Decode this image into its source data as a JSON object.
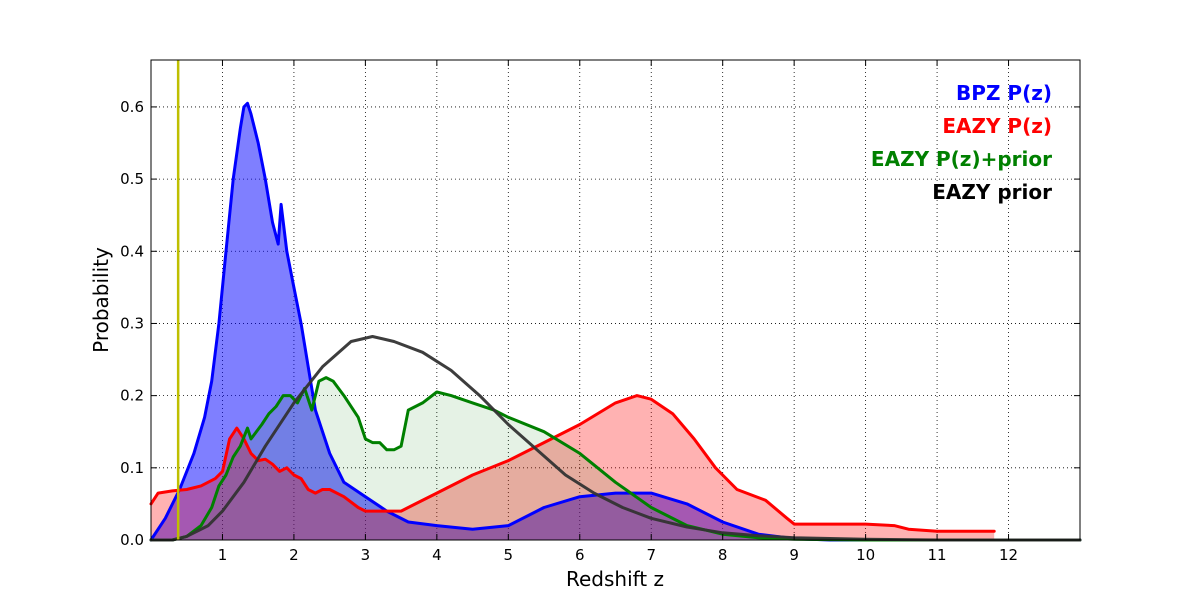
{
  "chart_data": {
    "type": "area",
    "xlabel": "Redshift z",
    "ylabel": "Probability",
    "xlim": [
      0,
      13
    ],
    "ylim": [
      0,
      0.665
    ],
    "xticks": [
      1,
      2,
      3,
      4,
      5,
      6,
      7,
      8,
      9,
      10,
      11,
      12
    ],
    "xtick_labels": [
      "1",
      "2",
      "3",
      "4",
      "5",
      "6",
      "7",
      "8",
      "9",
      "10",
      "11",
      "12"
    ],
    "yticks": [
      0.0,
      0.1,
      0.2,
      0.3,
      0.4,
      0.5,
      0.6
    ],
    "ytick_labels": [
      "0.0",
      "0.1",
      "0.2",
      "0.3",
      "0.4",
      "0.5",
      "0.6"
    ],
    "grid": true,
    "legend_position": "top-right",
    "vertical_line": {
      "x": 0.38,
      "color": "#bfbf00"
    },
    "series": [
      {
        "name": "BPZ P(z)",
        "color": "#0000ff",
        "fill": "#0000ff",
        "fill_opacity": 0.5,
        "x": [
          0.0,
          0.2,
          0.4,
          0.6,
          0.75,
          0.85,
          0.95,
          1.05,
          1.15,
          1.25,
          1.3,
          1.35,
          1.4,
          1.5,
          1.6,
          1.7,
          1.78,
          1.82,
          1.9,
          2.0,
          2.1,
          2.2,
          2.3,
          2.5,
          2.7,
          3.0,
          3.3,
          3.6,
          4.0,
          4.5,
          5.0,
          5.5,
          6.0,
          6.5,
          7.0,
          7.5,
          8.0,
          8.5,
          9.0,
          9.5,
          10.0,
          11.0,
          12.0,
          13.0
        ],
        "y": [
          0.0,
          0.03,
          0.07,
          0.12,
          0.17,
          0.22,
          0.3,
          0.4,
          0.5,
          0.57,
          0.6,
          0.605,
          0.59,
          0.55,
          0.5,
          0.44,
          0.41,
          0.465,
          0.4,
          0.35,
          0.3,
          0.24,
          0.18,
          0.12,
          0.08,
          0.06,
          0.04,
          0.025,
          0.02,
          0.015,
          0.02,
          0.045,
          0.06,
          0.065,
          0.065,
          0.05,
          0.025,
          0.008,
          0.002,
          0.0,
          0.0,
          0.0,
          0.0,
          0.0
        ]
      },
      {
        "name": "EAZY P(z)",
        "color": "#ff0000",
        "fill": "#ff0000",
        "fill_opacity": 0.3,
        "x": [
          0.0,
          0.1,
          0.3,
          0.5,
          0.7,
          0.9,
          1.0,
          1.1,
          1.2,
          1.3,
          1.4,
          1.5,
          1.6,
          1.7,
          1.8,
          1.9,
          2.0,
          2.1,
          2.2,
          2.3,
          2.4,
          2.5,
          2.7,
          2.9,
          3.0,
          3.2,
          3.5,
          3.7,
          4.0,
          4.5,
          5.0,
          5.5,
          6.0,
          6.5,
          6.8,
          7.0,
          7.3,
          7.6,
          7.9,
          8.2,
          8.6,
          8.9,
          9.0,
          9.5,
          10.0,
          10.4,
          10.6,
          11.0,
          11.5,
          11.8
        ],
        "y": [
          0.05,
          0.065,
          0.068,
          0.07,
          0.075,
          0.085,
          0.095,
          0.14,
          0.155,
          0.14,
          0.12,
          0.11,
          0.112,
          0.105,
          0.095,
          0.1,
          0.09,
          0.085,
          0.07,
          0.065,
          0.07,
          0.07,
          0.06,
          0.045,
          0.04,
          0.04,
          0.04,
          0.05,
          0.065,
          0.09,
          0.11,
          0.135,
          0.16,
          0.19,
          0.2,
          0.195,
          0.175,
          0.14,
          0.1,
          0.07,
          0.055,
          0.03,
          0.022,
          0.022,
          0.022,
          0.02,
          0.015,
          0.012,
          0.012,
          0.012
        ]
      },
      {
        "name": "EAZY P(z)+prior",
        "color": "#008000",
        "fill": "#008000",
        "fill_opacity": 0.1,
        "x": [
          0.0,
          0.3,
          0.5,
          0.7,
          0.85,
          0.95,
          1.05,
          1.15,
          1.25,
          1.35,
          1.4,
          1.55,
          1.65,
          1.75,
          1.85,
          1.95,
          2.05,
          2.15,
          2.25,
          2.35,
          2.45,
          2.55,
          2.7,
          2.9,
          3.0,
          3.1,
          3.2,
          3.3,
          3.4,
          3.5,
          3.6,
          3.8,
          4.0,
          4.2,
          4.5,
          4.8,
          5.0,
          5.5,
          6.0,
          6.5,
          7.0,
          7.5,
          8.0,
          8.5,
          9.0,
          10.0,
          11.0,
          13.0
        ],
        "y": [
          0.0,
          0.0,
          0.005,
          0.02,
          0.045,
          0.075,
          0.09,
          0.115,
          0.13,
          0.155,
          0.14,
          0.16,
          0.175,
          0.185,
          0.2,
          0.2,
          0.19,
          0.21,
          0.18,
          0.22,
          0.225,
          0.22,
          0.2,
          0.17,
          0.14,
          0.135,
          0.135,
          0.125,
          0.125,
          0.13,
          0.18,
          0.19,
          0.205,
          0.2,
          0.19,
          0.18,
          0.17,
          0.15,
          0.12,
          0.08,
          0.045,
          0.02,
          0.008,
          0.003,
          0.001,
          0.0,
          0.0,
          0.0
        ]
      },
      {
        "name": "EAZY prior",
        "color": "#333333",
        "fill": "none",
        "x": [
          0.0,
          0.3,
          0.5,
          0.8,
          1.0,
          1.3,
          1.6,
          2.0,
          2.4,
          2.8,
          3.1,
          3.4,
          3.8,
          4.2,
          4.6,
          5.0,
          5.4,
          5.8,
          6.2,
          6.6,
          7.0,
          7.5,
          8.0,
          8.5,
          9.0,
          10.0,
          11.0,
          13.0
        ],
        "y": [
          0.0,
          0.0,
          0.005,
          0.02,
          0.04,
          0.08,
          0.13,
          0.19,
          0.24,
          0.275,
          0.282,
          0.275,
          0.26,
          0.235,
          0.2,
          0.16,
          0.125,
          0.09,
          0.065,
          0.045,
          0.03,
          0.018,
          0.01,
          0.006,
          0.003,
          0.001,
          0.0,
          0.0
        ]
      }
    ]
  }
}
